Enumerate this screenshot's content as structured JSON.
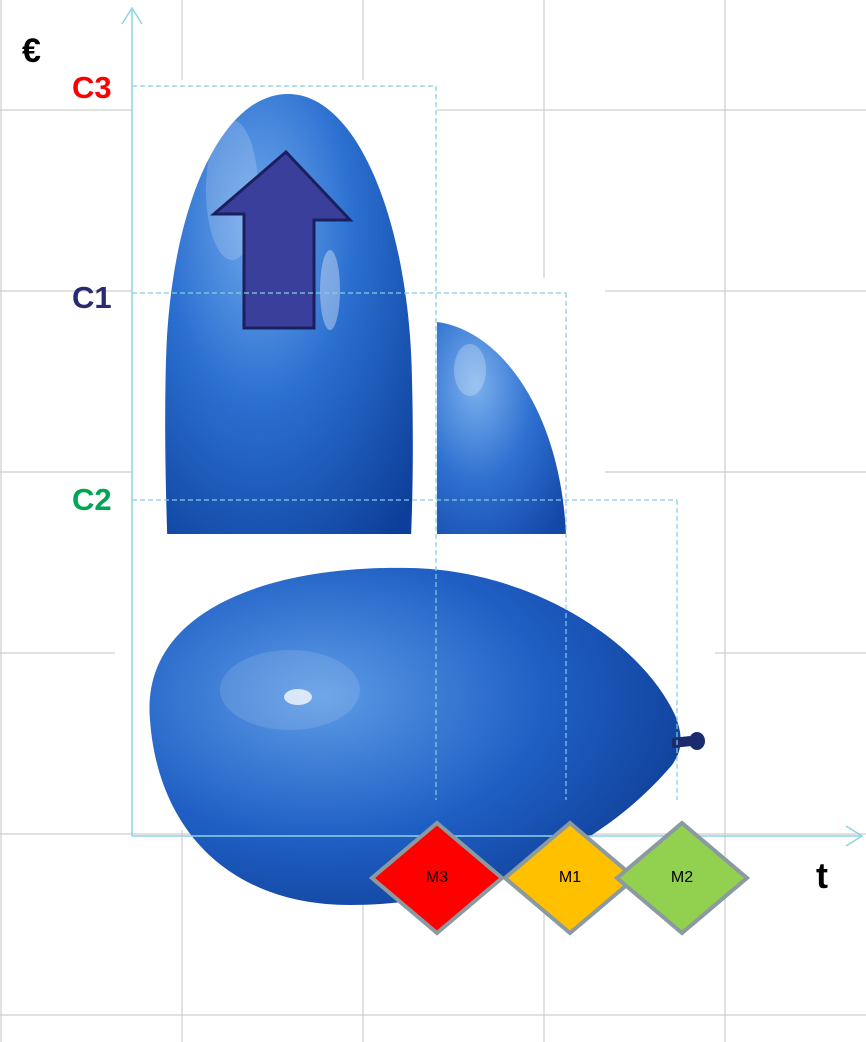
{
  "axes": {
    "y_label": "€",
    "x_label": "t"
  },
  "cost_levels": [
    {
      "label": "C3",
      "color": "#ff0000"
    },
    {
      "label": "C1",
      "color": "#2a2a6e"
    },
    {
      "label": "C2",
      "color": "#00a651"
    }
  ],
  "milestones": [
    {
      "label": "M3",
      "color": "#ff0000"
    },
    {
      "label": "M1",
      "color": "#ffc000"
    },
    {
      "label": "M2",
      "color": "#92d050"
    }
  ],
  "colors": {
    "axis": "#8fd3e4",
    "guide": "#86cde0",
    "balloon": "#1a5fc2",
    "arrow": "#3b3f9c",
    "diamond_border": "#8a9aa0"
  }
}
